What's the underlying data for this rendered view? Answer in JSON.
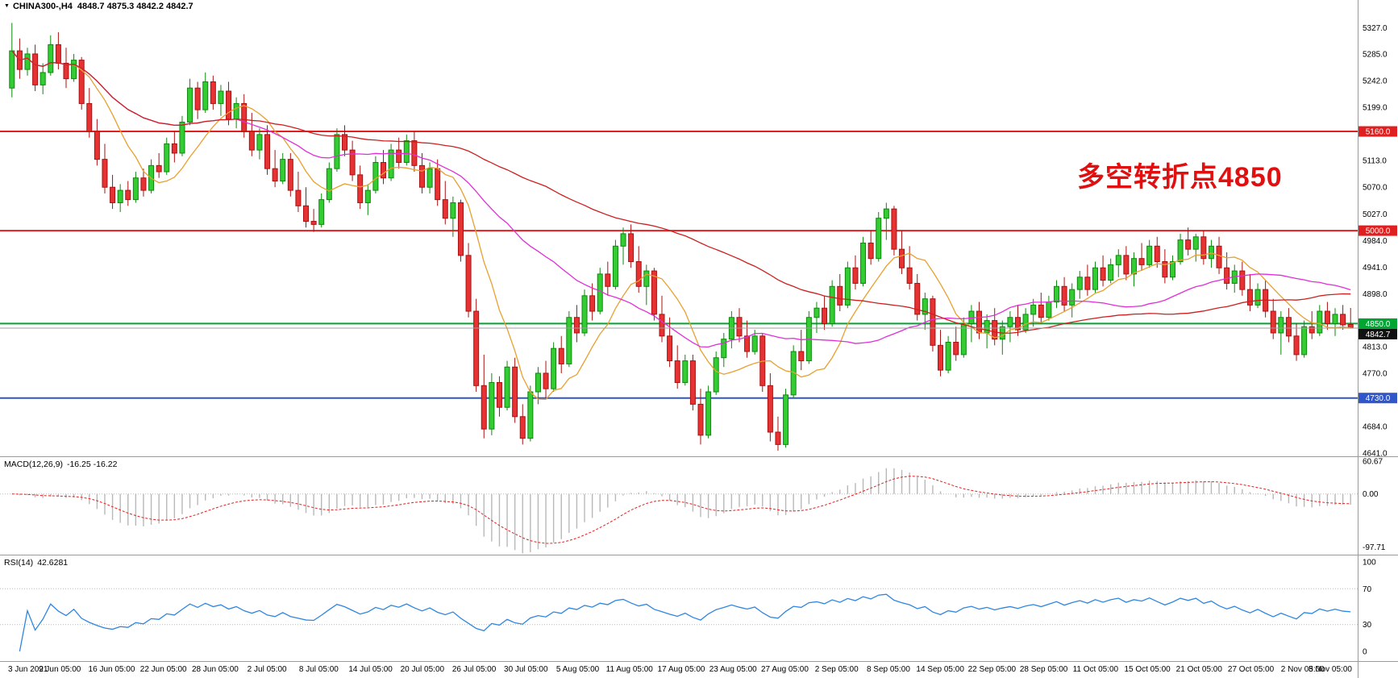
{
  "header": {
    "symbol": "CHINA300-,H4",
    "ohlc": "4848.7 4875.3 4842.2 4842.7"
  },
  "annotation": {
    "text": "多空转折点4850",
    "color": "#E01010"
  },
  "colors": {
    "up_fill": "#33CC33",
    "up_edge": "#0B8A0B",
    "down_fill": "#E63232",
    "down_edge": "#AA1111",
    "macd_hist": "#B8B8B8",
    "macd_signal": "#E02020",
    "rsi_line": "#2E86E0",
    "level_dotted": "#BBBBBB",
    "separator": "#9A9A9A",
    "axis_text": "#000000",
    "current_price_line": "#9C9C9C",
    "current_badge_bg": "#111111",
    "badge_text": "#FFFFFF"
  },
  "chart_data": {
    "type": "candlestick",
    "symbol": "CHINA300-",
    "timeframe": "H4",
    "price_panel": {
      "y_range": [
        4636,
        5372
      ],
      "y_ticks": [
        5327,
        5285,
        5242,
        5199,
        5113,
        5070,
        5027,
        4984,
        4941,
        4898,
        4813,
        4770,
        4684,
        4641
      ],
      "hlines": [
        {
          "value": 5160.0,
          "color": "#E02020",
          "width": 2
        },
        {
          "value": 5000.0,
          "color": "#E02020",
          "width": 2
        },
        {
          "value": 4850.0,
          "color": "#00A532",
          "width": 2
        },
        {
          "value": 4730.0,
          "color": "#3056C8",
          "width": 2
        }
      ],
      "current_price": 4842.7,
      "ma_lines": [
        {
          "period": 9,
          "color": "#E8A030"
        },
        {
          "period": 30,
          "color": "#E02ED8"
        },
        {
          "period": 70,
          "color": "#CC2020"
        }
      ],
      "x_labels": [
        "3 Jun 2021",
        "9 Jun 05:00",
        "16 Jun 05:00",
        "22 Jun 05:00",
        "28 Jun 05:00",
        "2 Jul 05:00",
        "8 Jul 05:00",
        "14 Jul 05:00",
        "20 Jul 05:00",
        "26 Jul 05:00",
        "30 Jul 05:00",
        "5 Aug 05:00",
        "11 Aug 05:00",
        "17 Aug 05:00",
        "23 Aug 05:00",
        "27 Aug 05:00",
        "2 Sep 05:00",
        "8 Sep 05:00",
        "14 Sep 05:00",
        "22 Sep 05:00",
        "28 Sep 05:00",
        "11 Oct 05:00",
        "15 Oct 05:00",
        "21 Oct 05:00",
        "27 Oct 05:00",
        "2 Nov 05:00",
        "8 Nov 05:00"
      ],
      "candles": [
        [
          5230,
          5335,
          5215,
          5290
        ],
        [
          5290,
          5310,
          5245,
          5260
        ],
        [
          5260,
          5295,
          5250,
          5285
        ],
        [
          5285,
          5300,
          5225,
          5235
        ],
        [
          5235,
          5270,
          5220,
          5255
        ],
        [
          5255,
          5315,
          5250,
          5300
        ],
        [
          5300,
          5320,
          5260,
          5270
        ],
        [
          5270,
          5295,
          5230,
          5245
        ],
        [
          5245,
          5285,
          5240,
          5275
        ],
        [
          5275,
          5280,
          5195,
          5205
        ],
        [
          5205,
          5230,
          5150,
          5160
        ],
        [
          5160,
          5180,
          5105,
          5115
        ],
        [
          5115,
          5140,
          5060,
          5070
        ],
        [
          5070,
          5090,
          5035,
          5045
        ],
        [
          5045,
          5075,
          5030,
          5065
        ],
        [
          5065,
          5080,
          5040,
          5050
        ],
        [
          5050,
          5095,
          5045,
          5085
        ],
        [
          5085,
          5100,
          5055,
          5065
        ],
        [
          5065,
          5115,
          5060,
          5105
        ],
        [
          5105,
          5125,
          5085,
          5095
        ],
        [
          5095,
          5150,
          5090,
          5140
        ],
        [
          5140,
          5160,
          5110,
          5125
        ],
        [
          5125,
          5185,
          5120,
          5175
        ],
        [
          5175,
          5245,
          5170,
          5230
        ],
        [
          5230,
          5240,
          5180,
          5195
        ],
        [
          5195,
          5255,
          5190,
          5240
        ],
        [
          5240,
          5250,
          5195,
          5205
        ],
        [
          5205,
          5235,
          5185,
          5225
        ],
        [
          5225,
          5240,
          5170,
          5180
        ],
        [
          5180,
          5215,
          5165,
          5205
        ],
        [
          5205,
          5220,
          5150,
          5160
        ],
        [
          5160,
          5190,
          5120,
          5130
        ],
        [
          5130,
          5165,
          5115,
          5155
        ],
        [
          5155,
          5170,
          5090,
          5100
        ],
        [
          5100,
          5130,
          5070,
          5080
        ],
        [
          5080,
          5125,
          5075,
          5115
        ],
        [
          5115,
          5125,
          5055,
          5065
        ],
        [
          5065,
          5095,
          5030,
          5040
        ],
        [
          5040,
          5070,
          5005,
          5015
        ],
        [
          5015,
          5035,
          4998,
          5010
        ],
        [
          5010,
          5060,
          5005,
          5050
        ],
        [
          5050,
          5110,
          5045,
          5100
        ],
        [
          5100,
          5165,
          5095,
          5155
        ],
        [
          5155,
          5170,
          5120,
          5130
        ],
        [
          5130,
          5145,
          5080,
          5090
        ],
        [
          5090,
          5105,
          5035,
          5045
        ],
        [
          5045,
          5075,
          5025,
          5065
        ],
        [
          5065,
          5120,
          5060,
          5110
        ],
        [
          5110,
          5130,
          5075,
          5085
        ],
        [
          5085,
          5140,
          5080,
          5130
        ],
        [
          5130,
          5150,
          5100,
          5110
        ],
        [
          5110,
          5155,
          5105,
          5145
        ],
        [
          5145,
          5160,
          5095,
          5105
        ],
        [
          5105,
          5125,
          5060,
          5070
        ],
        [
          5070,
          5110,
          5060,
          5100
        ],
        [
          5100,
          5115,
          5040,
          5050
        ],
        [
          5050,
          5080,
          5010,
          5020
        ],
        [
          5020,
          5055,
          4990,
          5045
        ],
        [
          5045,
          5050,
          4950,
          4960
        ],
        [
          4960,
          4980,
          4860,
          4870
        ],
        [
          4870,
          4890,
          4740,
          4750
        ],
        [
          4750,
          4800,
          4665,
          4680
        ],
        [
          4680,
          4770,
          4670,
          4755
        ],
        [
          4755,
          4765,
          4700,
          4715
        ],
        [
          4715,
          4790,
          4710,
          4780
        ],
        [
          4780,
          4795,
          4690,
          4700
        ],
        [
          4700,
          4720,
          4655,
          4665
        ],
        [
          4665,
          4750,
          4660,
          4740
        ],
        [
          4740,
          4780,
          4720,
          4770
        ],
        [
          4770,
          4790,
          4730,
          4745
        ],
        [
          4745,
          4820,
          4740,
          4810
        ],
        [
          4810,
          4830,
          4770,
          4785
        ],
        [
          4785,
          4870,
          4780,
          4860
        ],
        [
          4860,
          4880,
          4820,
          4835
        ],
        [
          4835,
          4905,
          4830,
          4895
        ],
        [
          4895,
          4915,
          4855,
          4870
        ],
        [
          4870,
          4940,
          4865,
          4930
        ],
        [
          4930,
          4950,
          4895,
          4910
        ],
        [
          4910,
          4985,
          4905,
          4975
        ],
        [
          4975,
          5005,
          4945,
          4995
        ],
        [
          4995,
          5010,
          4940,
          4950
        ],
        [
          4950,
          4975,
          4900,
          4910
        ],
        [
          4910,
          4945,
          4880,
          4935
        ],
        [
          4935,
          4940,
          4855,
          4865
        ],
        [
          4865,
          4895,
          4820,
          4830
        ],
        [
          4830,
          4860,
          4780,
          4790
        ],
        [
          4790,
          4815,
          4745,
          4755
        ],
        [
          4755,
          4800,
          4750,
          4790
        ],
        [
          4790,
          4800,
          4710,
          4720
        ],
        [
          4720,
          4745,
          4655,
          4670
        ],
        [
          4670,
          4750,
          4665,
          4740
        ],
        [
          4740,
          4805,
          4735,
          4795
        ],
        [
          4795,
          4835,
          4780,
          4825
        ],
        [
          4825,
          4870,
          4810,
          4860
        ],
        [
          4860,
          4875,
          4820,
          4830
        ],
        [
          4830,
          4855,
          4795,
          4805
        ],
        [
          4805,
          4840,
          4800,
          4830
        ],
        [
          4830,
          4835,
          4740,
          4750
        ],
        [
          4750,
          4770,
          4660,
          4675
        ],
        [
          4675,
          4700,
          4645,
          4655
        ],
        [
          4655,
          4745,
          4650,
          4735
        ],
        [
          4735,
          4815,
          4730,
          4805
        ],
        [
          4805,
          4840,
          4775,
          4790
        ],
        [
          4790,
          4870,
          4785,
          4860
        ],
        [
          4860,
          4885,
          4835,
          4875
        ],
        [
          4875,
          4895,
          4840,
          4850
        ],
        [
          4850,
          4920,
          4845,
          4910
        ],
        [
          4910,
          4930,
          4870,
          4880
        ],
        [
          4880,
          4950,
          4875,
          4940
        ],
        [
          4940,
          4960,
          4905,
          4915
        ],
        [
          4915,
          4990,
          4910,
          4980
        ],
        [
          4980,
          5000,
          4945,
          4955
        ],
        [
          4955,
          5030,
          4950,
          5020
        ],
        [
          5020,
          5045,
          4985,
          5035
        ],
        [
          5035,
          5040,
          4960,
          4970
        ],
        [
          4970,
          5000,
          4930,
          4940
        ],
        [
          4940,
          4975,
          4905,
          4915
        ],
        [
          4915,
          4930,
          4855,
          4865
        ],
        [
          4865,
          4900,
          4840,
          4890
        ],
        [
          4890,
          4895,
          4805,
          4815
        ],
        [
          4815,
          4840,
          4765,
          4775
        ],
        [
          4775,
          4830,
          4770,
          4820
        ],
        [
          4820,
          4845,
          4790,
          4800
        ],
        [
          4800,
          4860,
          4795,
          4850
        ],
        [
          4850,
          4880,
          4820,
          4870
        ],
        [
          4870,
          4885,
          4825,
          4835
        ],
        [
          4835,
          4865,
          4810,
          4855
        ],
        [
          4855,
          4875,
          4815,
          4825
        ],
        [
          4825,
          4855,
          4800,
          4845
        ],
        [
          4845,
          4870,
          4820,
          4860
        ],
        [
          4860,
          4880,
          4830,
          4840
        ],
        [
          4840,
          4875,
          4835,
          4865
        ],
        [
          4865,
          4890,
          4845,
          4880
        ],
        [
          4880,
          4900,
          4850,
          4860
        ],
        [
          4860,
          4895,
          4855,
          4885
        ],
        [
          4885,
          4920,
          4875,
          4910
        ],
        [
          4910,
          4925,
          4870,
          4880
        ],
        [
          4880,
          4915,
          4860,
          4905
        ],
        [
          4905,
          4935,
          4890,
          4925
        ],
        [
          4925,
          4945,
          4895,
          4905
        ],
        [
          4905,
          4950,
          4900,
          4940
        ],
        [
          4940,
          4960,
          4910,
          4920
        ],
        [
          4920,
          4955,
          4915,
          4945
        ],
        [
          4945,
          4970,
          4925,
          4960
        ],
        [
          4960,
          4975,
          4920,
          4930
        ],
        [
          4930,
          4965,
          4910,
          4955
        ],
        [
          4955,
          4980,
          4935,
          4945
        ],
        [
          4945,
          4985,
          4940,
          4975
        ],
        [
          4975,
          4990,
          4940,
          4950
        ],
        [
          4950,
          4970,
          4915,
          4925
        ],
        [
          4925,
          4960,
          4920,
          4950
        ],
        [
          4950,
          4995,
          4945,
          4985
        ],
        [
          4985,
          5005,
          4960,
          4970
        ],
        [
          4970,
          4995,
          4950,
          4990
        ],
        [
          4990,
          5000,
          4945,
          4955
        ],
        [
          4955,
          4985,
          4940,
          4975
        ],
        [
          4975,
          4990,
          4930,
          4940
        ],
        [
          4940,
          4965,
          4905,
          4915
        ],
        [
          4915,
          4945,
          4900,
          4935
        ],
        [
          4935,
          4950,
          4895,
          4905
        ],
        [
          4905,
          4930,
          4870,
          4880
        ],
        [
          4880,
          4915,
          4875,
          4905
        ],
        [
          4905,
          4920,
          4860,
          4870
        ],
        [
          4870,
          4890,
          4825,
          4835
        ],
        [
          4835,
          4870,
          4800,
          4860
        ],
        [
          4860,
          4875,
          4820,
          4830
        ],
        [
          4830,
          4850,
          4790,
          4800
        ],
        [
          4800,
          4855,
          4795,
          4845
        ],
        [
          4845,
          4870,
          4825,
          4835
        ],
        [
          4835,
          4880,
          4830,
          4870
        ],
        [
          4870,
          4885,
          4840,
          4850
        ],
        [
          4850,
          4875,
          4830,
          4865
        ],
        [
          4865,
          4880,
          4840,
          4848
        ],
        [
          4848.7,
          4875.3,
          4842.2,
          4842.7
        ]
      ]
    },
    "macd_panel": {
      "label": "MACD(12,26,9)",
      "values_text": "-16.25 -16.22",
      "fast": 12,
      "slow": 26,
      "signal": 9,
      "y_ticks": [
        60.67,
        0,
        -97.71
      ],
      "y_range": [
        -112,
        68
      ]
    },
    "rsi_panel": {
      "label": "RSI(14)",
      "value_text": "42.6281",
      "period": 14,
      "levels": [
        70,
        30
      ],
      "y_ticks": [
        100,
        70,
        30,
        0
      ],
      "y_range": [
        0,
        100
      ]
    }
  }
}
